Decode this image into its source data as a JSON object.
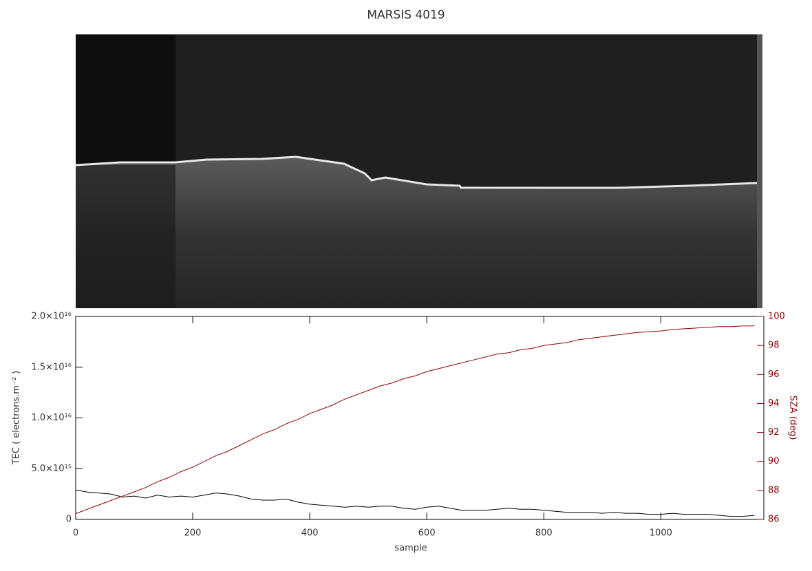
{
  "chart_data": {
    "type": "line",
    "title": "MARSIS 4019",
    "xlabel": "sample",
    "ylabel": "TEC ( electrons.m⁻² )",
    "y2label": "SZA (deg)",
    "xlim": [
      0,
      1176
    ],
    "xticks": [
      0,
      200,
      400,
      600,
      800,
      1000
    ],
    "ylim": [
      0,
      2e+16
    ],
    "yticks": [
      0,
      {
        "value": 5000000000000000.0,
        "label": "5.0×10¹⁵"
      },
      {
        "value": 1e+16,
        "label": "1.0×10¹⁶"
      },
      {
        "value": 1.5e+16,
        "label": "1.5×10¹⁶"
      },
      {
        "value": 2e+16,
        "label": "2.0×10¹⁶"
      }
    ],
    "y2lim": [
      86,
      100
    ],
    "y2ticks": [
      86,
      88,
      90,
      92,
      94,
      96,
      98,
      100
    ],
    "x": [
      0,
      20,
      40,
      60,
      80,
      100,
      120,
      140,
      160,
      180,
      200,
      220,
      240,
      260,
      280,
      300,
      320,
      340,
      360,
      380,
      400,
      420,
      440,
      460,
      480,
      500,
      520,
      540,
      560,
      580,
      600,
      620,
      640,
      660,
      680,
      700,
      720,
      740,
      760,
      780,
      800,
      820,
      840,
      860,
      880,
      900,
      920,
      940,
      960,
      980,
      1000,
      1020,
      1040,
      1060,
      1080,
      1100,
      1120,
      1140,
      1160
    ],
    "series": [
      {
        "color": "#000000",
        "values": [
          2900000000000000.0,
          2700000000000000.0,
          2600000000000000.0,
          2500000000000000.0,
          2200000000000000.0,
          2300000000000000.0,
          2100000000000000.0,
          2400000000000000.0,
          2200000000000000.0,
          2300000000000000.0,
          2200000000000000.0,
          2400000000000000.0,
          2600000000000000.0,
          2500000000000000.0,
          2300000000000000.0,
          2000000000000000.0,
          1900000000000000.0,
          1900000000000000.0,
          2000000000000000.0,
          1700000000000000.0,
          1500000000000000.0,
          1400000000000000.0,
          1300000000000000.0,
          1200000000000000.0,
          1300000000000000.0,
          1200000000000000.0,
          1300000000000000.0,
          1300000000000000.0,
          1100000000000000.0,
          1000000000000000.0,
          1200000000000000.0,
          1300000000000000.0,
          1100000000000000.0,
          900000000000000.0,
          900000000000000.0,
          900000000000000.0,
          1000000000000000.0,
          1100000000000000.0,
          1000000000000000.0,
          1000000000000000.0,
          900000000000000.0,
          800000000000000.0,
          700000000000000.0,
          700000000000000.0,
          700000000000000.0,
          600000000000000.0,
          700000000000000.0,
          600000000000000.0,
          600000000000000.0,
          500000000000000.0,
          500000000000000.0,
          600000000000000.0,
          500000000000000.0,
          500000000000000.0,
          500000000000000.0,
          400000000000000.0,
          300000000000000.0,
          300000000000000.0,
          400000000000000.0
        ]
      },
      {
        "color": "#8b0000",
        "axis": "y2",
        "values": [
          86.4,
          86.7,
          87.0,
          87.3,
          87.6,
          87.9,
          88.2,
          88.6,
          88.9,
          89.3,
          89.6,
          90.0,
          90.4,
          90.7,
          91.1,
          91.5,
          91.9,
          92.2,
          92.6,
          92.9,
          93.3,
          93.6,
          93.9,
          94.3,
          94.6,
          94.9,
          95.2,
          95.4,
          95.7,
          95.9,
          96.2,
          96.4,
          96.6,
          96.8,
          97.0,
          97.2,
          97.4,
          97.5,
          97.7,
          97.8,
          98.0,
          98.1,
          98.2,
          98.4,
          98.5,
          98.6,
          98.7,
          98.8,
          98.9,
          98.95,
          99.0,
          99.1,
          99.15,
          99.2,
          99.25,
          99.3,
          99.3,
          99.35,
          99.35
        ]
      }
    ]
  }
}
